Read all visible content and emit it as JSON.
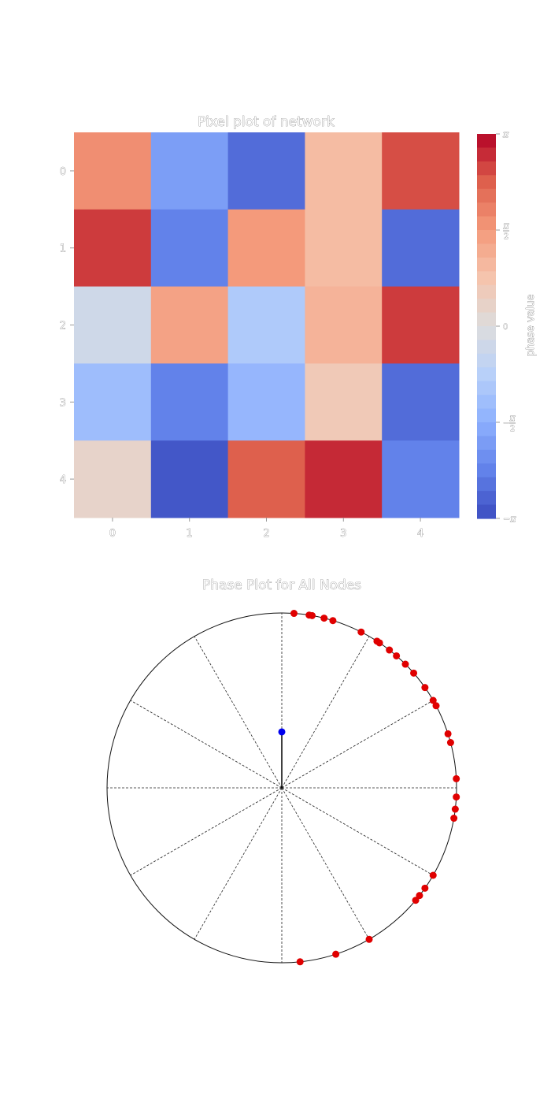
{
  "chart_data": [
    {
      "type": "heatmap",
      "title": "Pixel plot of network",
      "x_tick_labels": [
        "0",
        "1",
        "2",
        "3",
        "4"
      ],
      "y_tick_labels": [
        "0",
        "1",
        "2",
        "3",
        "4"
      ],
      "values": [
        [
          0.55,
          -0.6,
          -0.85,
          0.3,
          0.8
        ],
        [
          0.85,
          -0.75,
          0.5,
          0.3,
          -0.85
        ],
        [
          -0.1,
          0.45,
          -0.3,
          0.35,
          0.85
        ],
        [
          -0.4,
          -0.75,
          -0.45,
          0.2,
          -0.85
        ],
        [
          0.1,
          -0.95,
          0.75,
          0.9,
          -0.75
        ]
      ],
      "value_range": [
        -1,
        1
      ],
      "colormap": "coolwarm",
      "colorbar": {
        "label": "phase value",
        "ticks": [
          {
            "value": 1,
            "label": "π"
          },
          {
            "value": 0.5,
            "label": "π/2"
          },
          {
            "value": 0,
            "label": "0"
          },
          {
            "value": -0.5,
            "label": "-π/2"
          },
          {
            "value": -1,
            "label": "-π"
          }
        ]
      }
    },
    {
      "type": "scatter",
      "subtype": "polar-phase",
      "title": "Phase Plot for All Nodes",
      "radial_lines_count": 12,
      "node_angles_deg": [
        86,
        81,
        80,
        76,
        73,
        63,
        57,
        56,
        52,
        49,
        45,
        41,
        35,
        28,
        18,
        -7,
        -35,
        -40,
        30,
        15,
        3,
        -3,
        -10,
        -30,
        -38,
        -60,
        -72,
        -84
      ],
      "mean_vector": {
        "angle_deg": 90,
        "length": 0.32
      },
      "node_color": "#e00000",
      "mean_color": "#0000ee"
    }
  ]
}
